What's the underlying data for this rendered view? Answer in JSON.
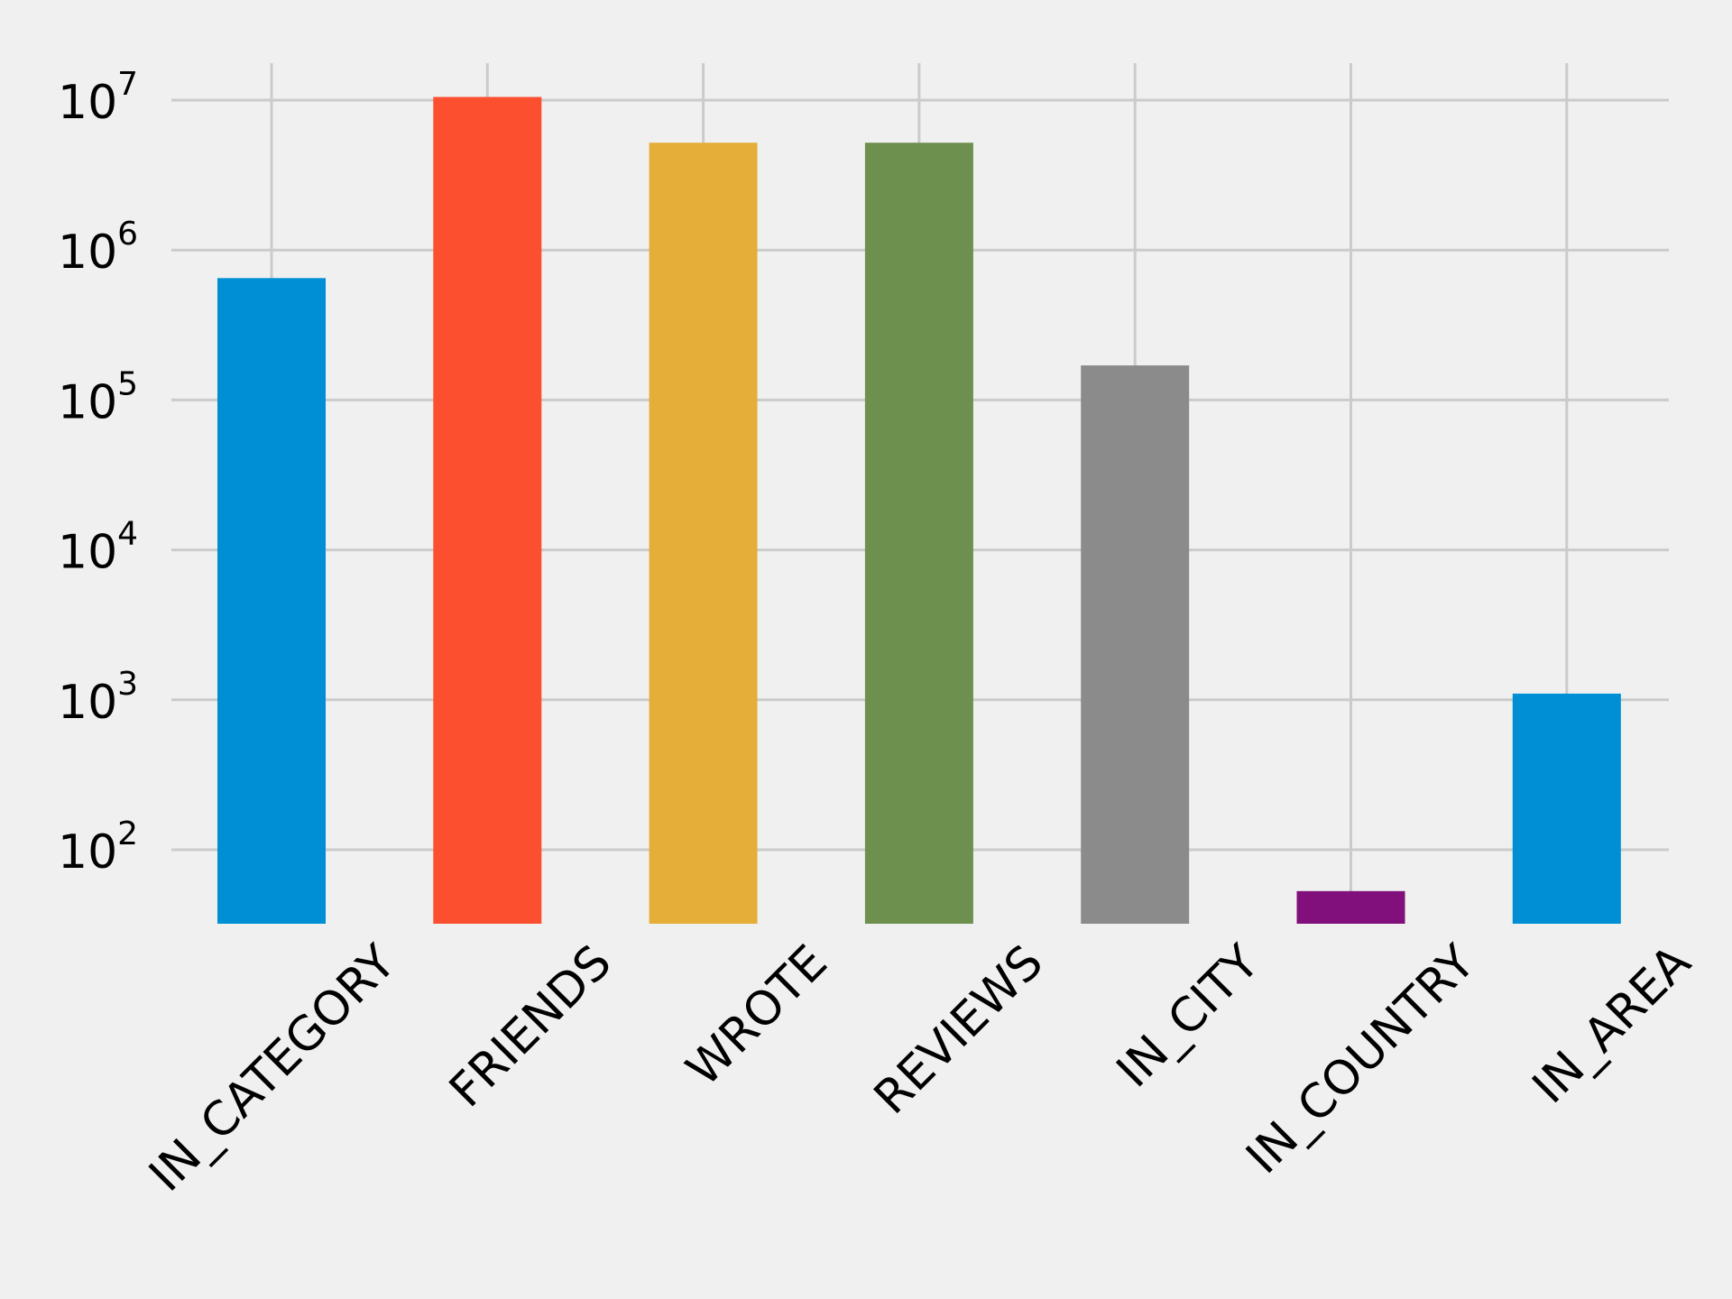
{
  "chart_data": {
    "type": "bar",
    "title": "",
    "xlabel": "",
    "ylabel": "",
    "y_scale": "log",
    "ylim": [
      30,
      14000000
    ],
    "grid": true,
    "legend": "none",
    "categories": [
      "IN_CATEGORY",
      "FRIENDS",
      "WROTE",
      "REVIEWS",
      "IN_CITY",
      "IN_COUNTRY",
      "IN_AREA"
    ],
    "values": [
      650000,
      10500000,
      5200000,
      5200000,
      170000,
      53,
      1100
    ],
    "colors": [
      "#008fd5",
      "#fc4f30",
      "#e5ae38",
      "#6d904f",
      "#8b8b8b",
      "#810f7c",
      "#008fd5"
    ],
    "y_ticks": [
      {
        "base": "10",
        "exp": "2",
        "value": 100
      },
      {
        "base": "10",
        "exp": "3",
        "value": 1000
      },
      {
        "base": "10",
        "exp": "4",
        "value": 10000
      },
      {
        "base": "10",
        "exp": "5",
        "value": 100000
      },
      {
        "base": "10",
        "exp": "6",
        "value": 1000000
      },
      {
        "base": "10",
        "exp": "7",
        "value": 10000000
      }
    ]
  },
  "style": {
    "background": "#f0f0f0",
    "grid_color": "#cbcbcb"
  }
}
